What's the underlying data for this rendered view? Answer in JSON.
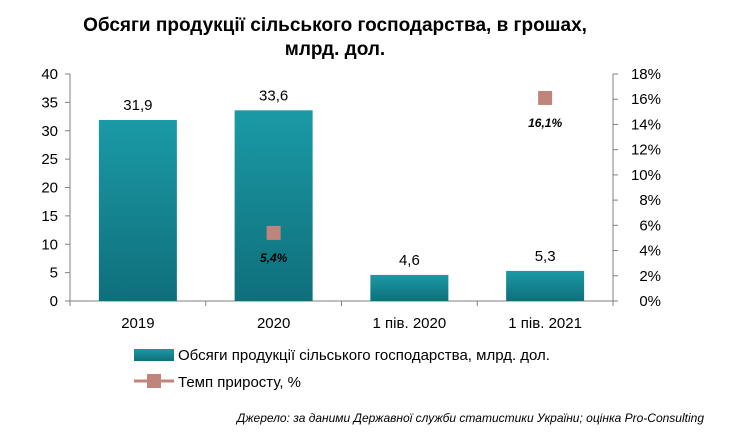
{
  "title_line1": "Обсяги продукції сільського господарства, в грошах,",
  "title_line2": "млрд. дол.",
  "source": "Джерело: за даними Державної служби статистики України; оцінка Pro-Consulting",
  "colors": {
    "bar": "#1a9aa6",
    "marker": "#c0847c"
  },
  "chart_data": {
    "type": "bar",
    "categories": [
      "2019",
      "2020",
      "1 пів. 2020",
      "1 пів. 2021"
    ],
    "series": [
      {
        "name": "Обсяги продукції  сільського господарства, млрд. дол.",
        "axis": "left",
        "values": [
          31.9,
          33.6,
          4.6,
          5.3
        ],
        "labels": [
          "31,9",
          "33,6",
          "4,6",
          "5,3"
        ]
      },
      {
        "name": "Темп приросту, %",
        "axis": "right",
        "type": "scatter",
        "values": [
          null,
          5.4,
          null,
          16.1
        ],
        "labels": [
          "",
          "5,4%",
          "",
          "16,1%"
        ]
      }
    ],
    "ylim": [
      0,
      40
    ],
    "yticks": [
      "0",
      "5",
      "10",
      "15",
      "20",
      "25",
      "30",
      "35",
      "40"
    ],
    "y2lim": [
      0,
      18
    ],
    "y2ticks": [
      "0%",
      "2%",
      "4%",
      "6%",
      "8%",
      "10%",
      "12%",
      "14%",
      "16%",
      "18%"
    ],
    "legend": "bottom"
  }
}
